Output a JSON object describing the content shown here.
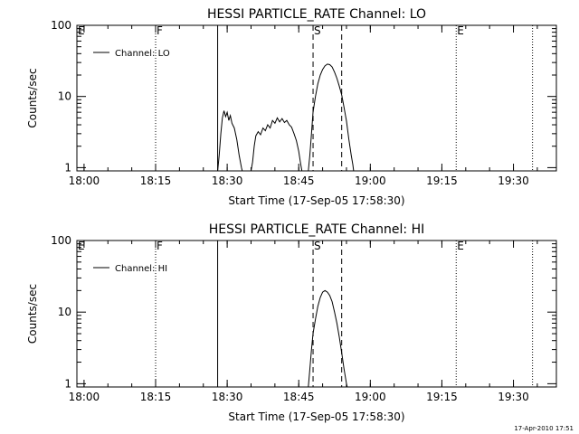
{
  "footer": {
    "stamp": "17-Apr-2010 17:51"
  },
  "chart_data": [
    {
      "type": "line",
      "title": "HESSI PARTICLE_RATE Channel: LO",
      "xlabel": "Start Time (17-Sep-05 17:58:30)",
      "ylabel": "Counts/sec",
      "yscale": "log",
      "xlim": [
        "17:58:30",
        "19:39:00"
      ],
      "ylim": [
        0.9,
        100
      ],
      "x_ticks": [
        "18:00",
        "18:15",
        "18:30",
        "18:45",
        "19:00",
        "19:15",
        "19:30"
      ],
      "y_ticks": [
        "1",
        "10",
        "100"
      ],
      "legend": {
        "placement": "top-left",
        "entries": [
          "Channel: LO"
        ]
      },
      "grid": false,
      "markers": [
        {
          "label": "E",
          "time": "17:58:30",
          "style": "none"
        },
        {
          "label": "F",
          "time": "18:15:00",
          "style": "dotted"
        },
        {
          "label": "",
          "time": "18:28:00",
          "style": "solid"
        },
        {
          "label": "S",
          "time": "18:48:00",
          "style": "dashed"
        },
        {
          "label": "",
          "time": "18:54:00",
          "style": "dashed"
        },
        {
          "label": "E",
          "time": "19:18:00",
          "style": "dotted"
        },
        {
          "label": "",
          "time": "19:34:00",
          "style": "dotted"
        }
      ],
      "series": [
        {
          "segments": [
            [
              [
                "18:28:00",
                0.9
              ],
              [
                "18:28:20",
                1.5
              ],
              [
                "18:28:40",
                3.0
              ],
              [
                "18:29:00",
                5.0
              ],
              [
                "18:29:20",
                6.3
              ],
              [
                "18:29:40",
                5.2
              ],
              [
                "18:30:00",
                6.0
              ],
              [
                "18:30:20",
                4.6
              ],
              [
                "18:30:40",
                5.4
              ],
              [
                "18:31:00",
                4.2
              ],
              [
                "18:31:30",
                3.6
              ],
              [
                "18:32:00",
                2.5
              ],
              [
                "18:32:30",
                1.5
              ],
              [
                "18:33:00",
                1.0
              ],
              [
                "18:33:10",
                0.9
              ]
            ],
            [
              [
                "18:35:00",
                0.9
              ],
              [
                "18:35:20",
                1.2
              ],
              [
                "18:35:40",
                2.0
              ],
              [
                "18:36:00",
                2.8
              ],
              [
                "18:36:30",
                3.2
              ],
              [
                "18:37:00",
                2.9
              ],
              [
                "18:37:30",
                3.6
              ],
              [
                "18:38:00",
                3.3
              ],
              [
                "18:38:30",
                4.0
              ],
              [
                "18:39:00",
                3.6
              ],
              [
                "18:39:30",
                4.6
              ],
              [
                "18:40:00",
                4.2
              ],
              [
                "18:40:30",
                5.0
              ],
              [
                "18:41:00",
                4.4
              ],
              [
                "18:41:30",
                4.9
              ],
              [
                "18:42:00",
                4.3
              ],
              [
                "18:42:30",
                4.6
              ],
              [
                "18:43:00",
                4.0
              ],
              [
                "18:43:30",
                3.7
              ],
              [
                "18:44:00",
                3.0
              ],
              [
                "18:44:30",
                2.4
              ],
              [
                "18:45:00",
                1.7
              ],
              [
                "18:45:20",
                1.2
              ],
              [
                "18:45:40",
                0.9
              ]
            ],
            [
              [
                "18:47:00",
                0.9
              ],
              [
                "18:47:20",
                1.5
              ],
              [
                "18:47:40",
                3.0
              ],
              [
                "18:48:00",
                6.0
              ],
              [
                "18:48:30",
                10.0
              ],
              [
                "18:49:00",
                15.0
              ],
              [
                "18:49:30",
                20.0
              ],
              [
                "18:50:00",
                24.0
              ],
              [
                "18:50:30",
                27.0
              ],
              [
                "18:51:00",
                28.5
              ],
              [
                "18:51:30",
                28.0
              ],
              [
                "18:52:00",
                26.0
              ],
              [
                "18:52:30",
                22.0
              ],
              [
                "18:53:00",
                18.0
              ],
              [
                "18:53:30",
                14.0
              ],
              [
                "18:54:00",
                10.5
              ],
              [
                "18:54:30",
                7.0
              ],
              [
                "18:55:00",
                4.5
              ],
              [
                "18:55:30",
                2.5
              ],
              [
                "18:56:00",
                1.5
              ],
              [
                "18:56:20",
                1.1
              ],
              [
                "18:56:30",
                0.9
              ]
            ]
          ]
        }
      ]
    },
    {
      "type": "line",
      "title": "HESSI PARTICLE_RATE Channel: HI",
      "xlabel": "Start Time (17-Sep-05 17:58:30)",
      "ylabel": "Counts/sec",
      "yscale": "log",
      "xlim": [
        "17:58:30",
        "19:39:00"
      ],
      "ylim": [
        0.9,
        100
      ],
      "x_ticks": [
        "18:00",
        "18:15",
        "18:30",
        "18:45",
        "19:00",
        "19:15",
        "19:30"
      ],
      "y_ticks": [
        "1",
        "10",
        "100"
      ],
      "legend": {
        "placement": "top-left",
        "entries": [
          "Channel: HI"
        ]
      },
      "grid": false,
      "markers": [
        {
          "label": "E",
          "time": "17:58:30",
          "style": "none"
        },
        {
          "label": "F",
          "time": "18:15:00",
          "style": "dotted"
        },
        {
          "label": "",
          "time": "18:28:00",
          "style": "solid"
        },
        {
          "label": "S",
          "time": "18:48:00",
          "style": "dashed"
        },
        {
          "label": "",
          "time": "18:54:00",
          "style": "dashed"
        },
        {
          "label": "E",
          "time": "19:18:00",
          "style": "dotted"
        },
        {
          "label": "",
          "time": "19:34:00",
          "style": "dotted"
        }
      ],
      "series": [
        {
          "segments": [
            [
              [
                "18:47:00",
                0.9
              ],
              [
                "18:47:20",
                1.6
              ],
              [
                "18:47:40",
                3.0
              ],
              [
                "18:48:00",
                5.0
              ],
              [
                "18:48:30",
                8.0
              ],
              [
                "18:49:00",
                12.0
              ],
              [
                "18:49:30",
                16.0
              ],
              [
                "18:50:00",
                19.0
              ],
              [
                "18:50:30",
                20.0
              ],
              [
                "18:51:00",
                19.0
              ],
              [
                "18:51:30",
                17.0
              ],
              [
                "18:52:00",
                14.0
              ],
              [
                "18:52:30",
                10.0
              ],
              [
                "18:53:00",
                7.0
              ],
              [
                "18:53:30",
                4.5
              ],
              [
                "18:54:00",
                2.7
              ],
              [
                "18:54:30",
                1.6
              ],
              [
                "18:55:00",
                1.0
              ],
              [
                "18:55:10",
                0.9
              ]
            ]
          ]
        }
      ]
    }
  ]
}
